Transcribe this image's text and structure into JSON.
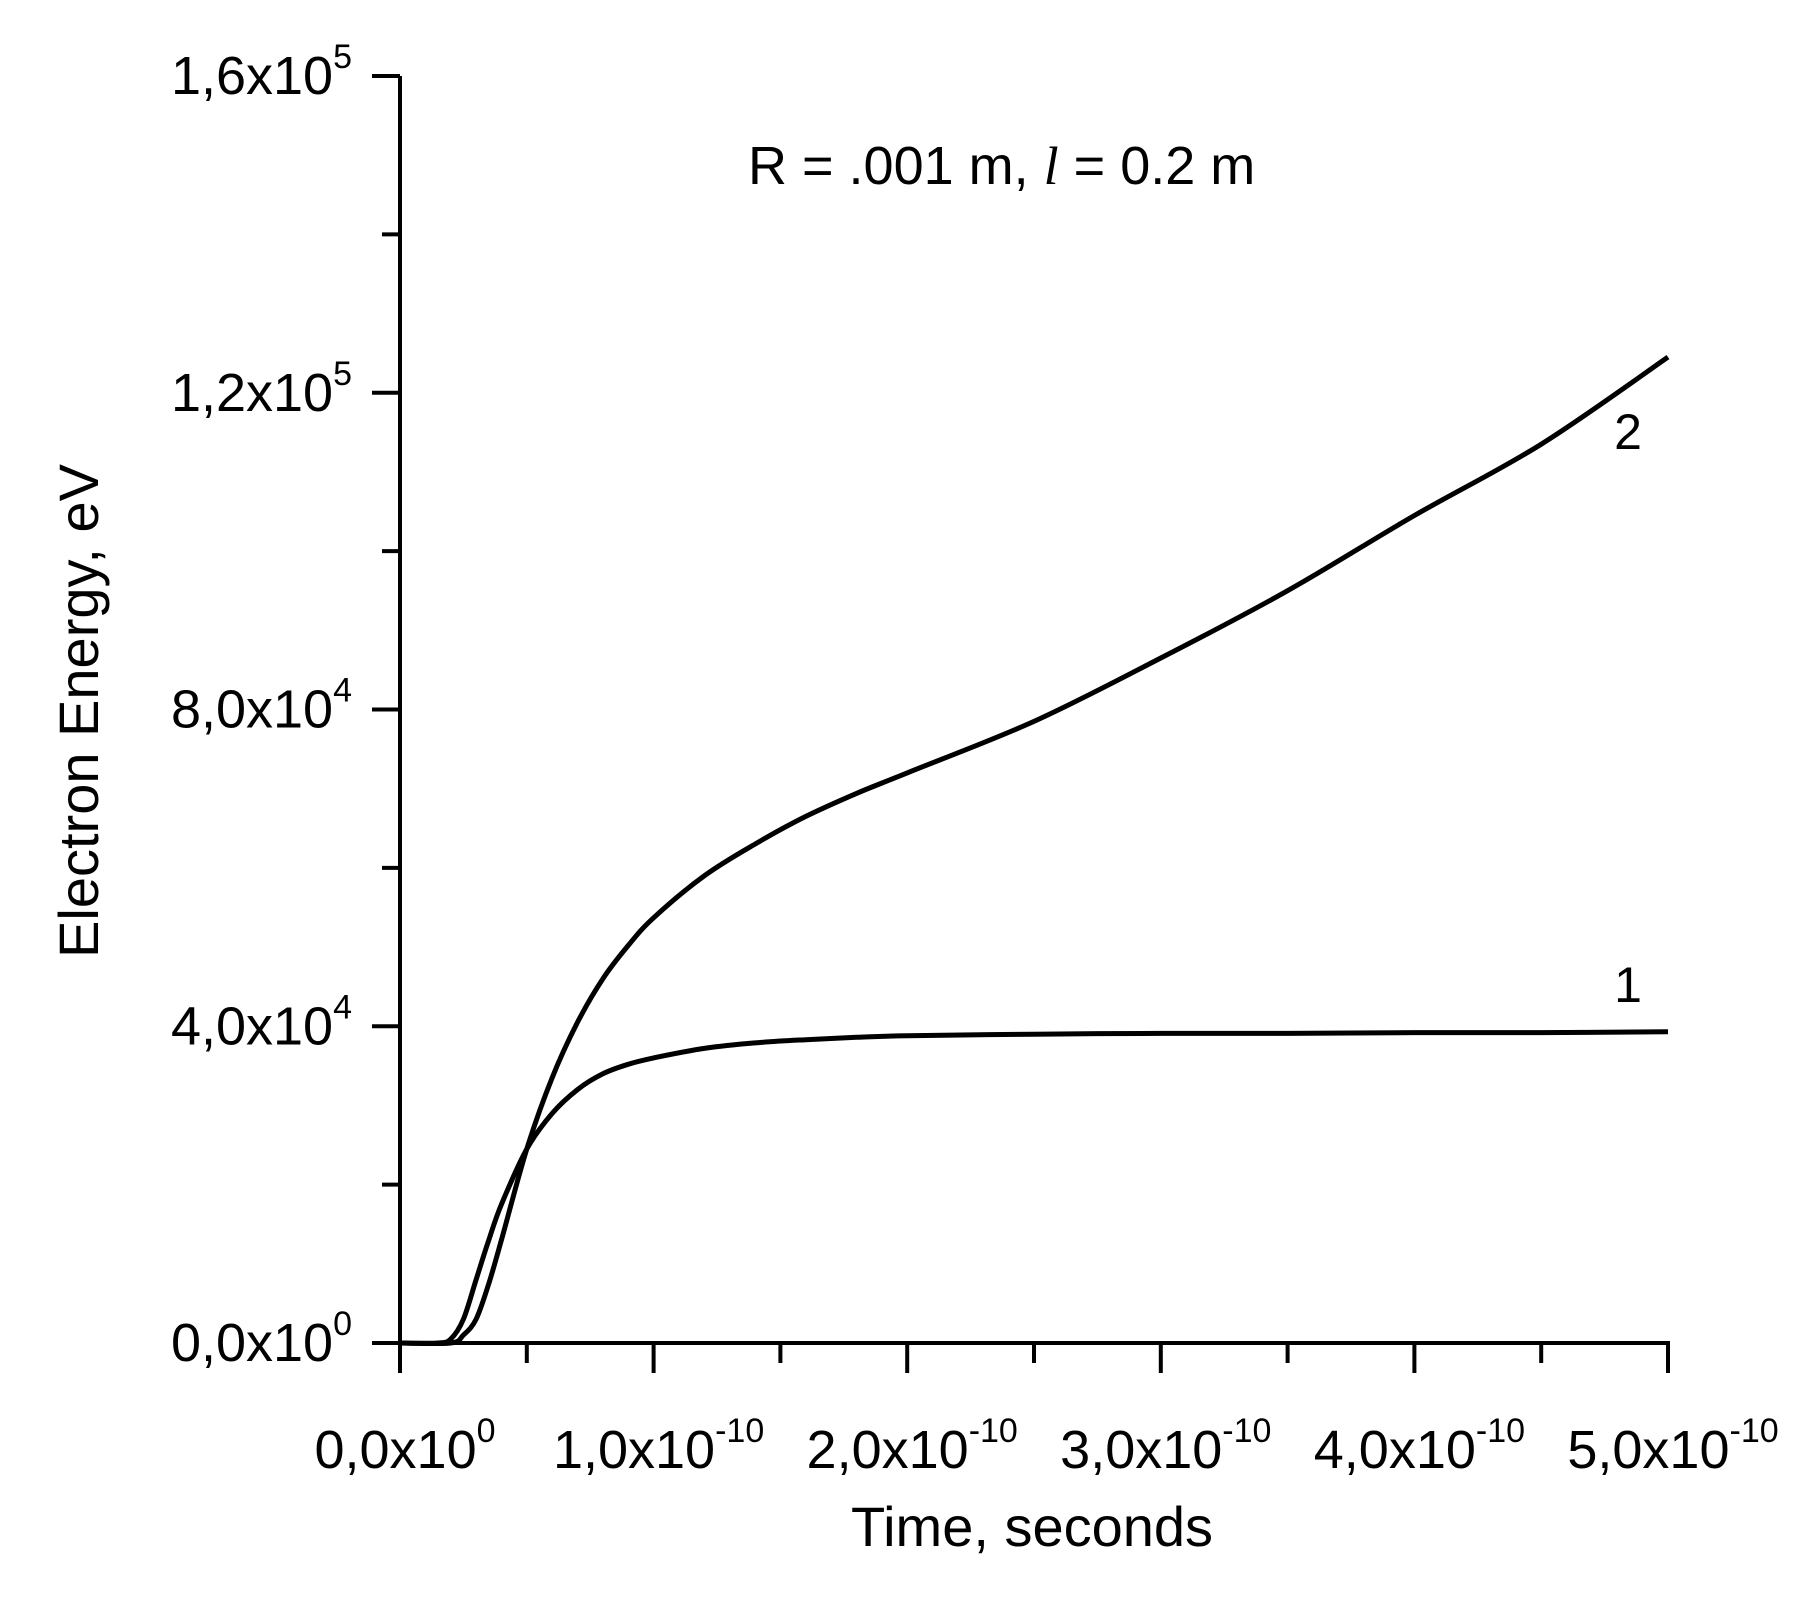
{
  "chart_data": {
    "type": "line",
    "annotation": {
      "prefix": "R = .001 m, ",
      "italic": "l",
      "suffix": " = 0.2 m"
    },
    "xlabel": "Time, seconds",
    "ylabel": "Electron Energy, eV",
    "xlim": [
      0,
      5e-10
    ],
    "ylim": [
      0,
      160000
    ],
    "grid": false,
    "xticks": [
      {
        "value": 0,
        "mantissa": "0,0x10",
        "exponent": "0"
      },
      {
        "value": 1e-10,
        "mantissa": "1,0x10",
        "exponent": "-10"
      },
      {
        "value": 2e-10,
        "mantissa": "2,0x10",
        "exponent": "-10"
      },
      {
        "value": 3e-10,
        "mantissa": "3,0x10",
        "exponent": "-10"
      },
      {
        "value": 4e-10,
        "mantissa": "4,0x10",
        "exponent": "-10"
      },
      {
        "value": 5e-10,
        "mantissa": "5,0x10",
        "exponent": "-10"
      }
    ],
    "xminor": [
      5e-11,
      1.5e-10,
      2.5e-10,
      3.5e-10,
      4.5e-10
    ],
    "yticks": [
      {
        "value": 0,
        "mantissa": "0,0x10",
        "exponent": "0"
      },
      {
        "value": 40000,
        "mantissa": "4,0x10",
        "exponent": "4"
      },
      {
        "value": 80000,
        "mantissa": "8,0x10",
        "exponent": "4"
      },
      {
        "value": 120000,
        "mantissa": "1,2x10",
        "exponent": "5"
      },
      {
        "value": 160000,
        "mantissa": "1,6x10",
        "exponent": "5"
      }
    ],
    "yminor": [
      20000,
      60000,
      100000,
      140000
    ],
    "series": [
      {
        "name": "1",
        "x": [
          0,
          1.5e-11,
          2e-11,
          2.5e-11,
          3e-11,
          3.5e-11,
          4e-11,
          5e-11,
          6e-11,
          7e-11,
          8e-11,
          9e-11,
          1e-10,
          1.2e-10,
          1.4e-10,
          1.6e-10,
          1.8e-10,
          2e-10,
          2.5e-10,
          3e-10,
          3.5e-10,
          4e-10,
          4.5e-10,
          5e-10
        ],
        "y": [
          0,
          0,
          500,
          3000,
          8000,
          13000,
          17500,
          24500,
          29000,
          32000,
          34000,
          35200,
          36000,
          37200,
          37900,
          38300,
          38600,
          38800,
          39000,
          39100,
          39100,
          39200,
          39200,
          39300
        ]
      },
      {
        "name": "2",
        "x": [
          0,
          2e-11,
          2.5e-11,
          3e-11,
          3.5e-11,
          4e-11,
          5e-11,
          6e-11,
          7e-11,
          8e-11,
          9e-11,
          1e-10,
          1.2e-10,
          1.4e-10,
          1.6e-10,
          1.8e-10,
          2e-10,
          2.5e-10,
          3e-10,
          3.5e-10,
          4e-10,
          4.5e-10,
          5e-10
        ],
        "y": [
          0,
          0,
          1000,
          3000,
          7500,
          13000,
          24500,
          33500,
          40500,
          46000,
          50200,
          53700,
          59000,
          63000,
          66500,
          69400,
          72000,
          78500,
          86500,
          95000,
          104500,
          113500,
          124500
        ]
      }
    ]
  }
}
